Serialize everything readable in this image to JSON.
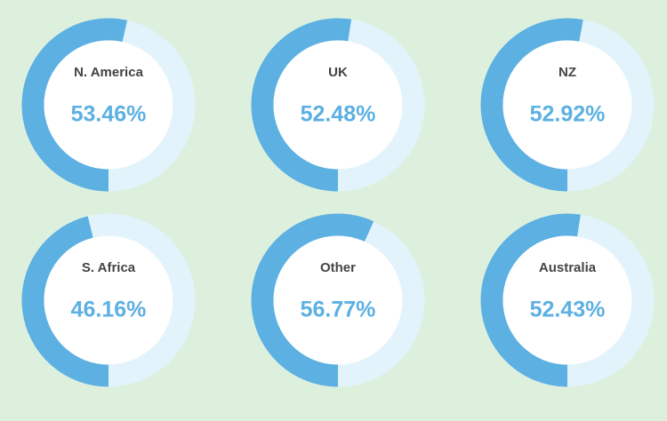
{
  "chart_data": [
    {
      "type": "donut",
      "title": "N. America",
      "values": [
        53.46
      ],
      "value_labels": [
        "53.46%"
      ],
      "ylim": [
        0,
        100
      ],
      "color": "#5cb0e2",
      "track_color": "#e2f3fc"
    },
    {
      "type": "donut",
      "title": "UK",
      "values": [
        52.48
      ],
      "value_labels": [
        "52.48%"
      ],
      "ylim": [
        0,
        100
      ],
      "color": "#5cb0e2",
      "track_color": "#e2f3fc"
    },
    {
      "type": "donut",
      "title": "NZ",
      "values": [
        52.92
      ],
      "value_labels": [
        "52.92%"
      ],
      "ylim": [
        0,
        100
      ],
      "color": "#5cb0e2",
      "track_color": "#e2f3fc"
    },
    {
      "type": "donut",
      "title": "S. Africa",
      "values": [
        46.16
      ],
      "value_labels": [
        "46.16%"
      ],
      "ylim": [
        0,
        100
      ],
      "color": "#5cb0e2",
      "track_color": "#e2f3fc"
    },
    {
      "type": "donut",
      "title": "Other",
      "values": [
        56.77
      ],
      "value_labels": [
        "56.77%"
      ],
      "ylim": [
        0,
        100
      ],
      "color": "#5cb0e2",
      "track_color": "#e2f3fc"
    },
    {
      "type": "donut",
      "title": "Australia",
      "values": [
        52.43
      ],
      "value_labels": [
        "52.43%"
      ],
      "ylim": [
        0,
        100
      ],
      "color": "#5cb0e2",
      "track_color": "#e2f3fc"
    }
  ]
}
